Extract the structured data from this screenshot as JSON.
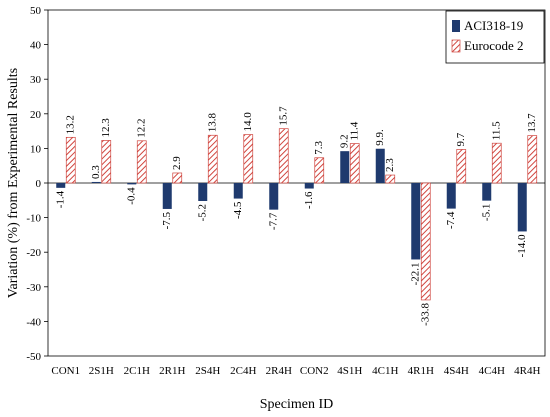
{
  "chart_data": {
    "type": "bar",
    "xlabel": "Specimen ID",
    "ylabel": "Variation (%) from Experimental Results",
    "ylim": [
      -50,
      50
    ],
    "yticks": [
      -50,
      -40,
      -30,
      -20,
      -10,
      0,
      10,
      20,
      30,
      40,
      50
    ],
    "ytick_labels": [
      "-50",
      "-40",
      "-30",
      "-20",
      "-10",
      "0",
      "10",
      "20",
      "30",
      "40",
      "50"
    ],
    "grid": false,
    "legend_position": "top-right",
    "categories": [
      "CON1",
      "2S1H",
      "2C1H",
      "2R1H",
      "2S4H",
      "2C4H",
      "2R4H",
      "CON2",
      "4S1H",
      "4C1H",
      "4R1H",
      "4S4H",
      "4C4H",
      "4R4H"
    ],
    "series": [
      {
        "name": "ACI318-19",
        "color": "#1f3a6e",
        "pattern": "solid",
        "values": [
          -1.4,
          0.3,
          -0.4,
          -7.5,
          -5.2,
          -4.5,
          -7.7,
          -1.6,
          9.2,
          9.9,
          -22.1,
          -7.4,
          -5.1,
          -14.0
        ],
        "labels": [
          "-1.4",
          "0.3",
          "-0.4",
          "-7.5",
          "-5.2",
          "-4.5",
          "-7.7",
          "-1.6",
          "9.2",
          "9.9.",
          "-22.1",
          "-7.4",
          "-5.1",
          "-14.0"
        ]
      },
      {
        "name": "Eurocode 2",
        "color": "#d0463f",
        "pattern": "hatch",
        "values": [
          13.2,
          12.3,
          12.2,
          2.9,
          13.8,
          14.0,
          15.7,
          7.3,
          11.4,
          2.3,
          -33.8,
          9.7,
          11.5,
          13.7
        ],
        "labels": [
          "13.2",
          "12.3",
          "12.2",
          "2.9",
          "13.8",
          "14.0",
          "15.7",
          "7.3",
          "11.4",
          "2.3",
          "-33.8",
          "9.7",
          "11.5",
          "13.7"
        ]
      }
    ]
  }
}
